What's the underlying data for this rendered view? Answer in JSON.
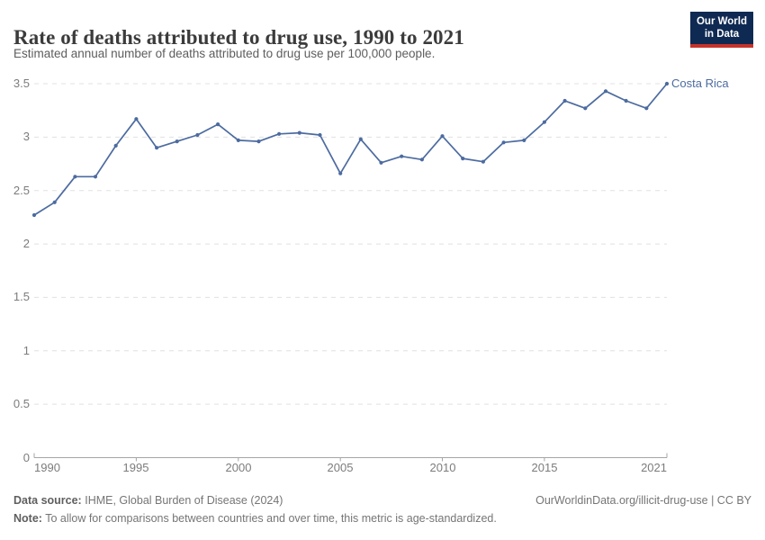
{
  "header": {
    "title": "Rate of deaths attributed to drug use, 1990 to 2021",
    "subtitle": "Estimated annual number of deaths attributed to drug use per 100,000 people."
  },
  "logo": {
    "line1": "Our World",
    "line2": "in Data"
  },
  "chart_data": {
    "type": "line",
    "title": "Rate of deaths attributed to drug use, 1990 to 2021",
    "xlabel": "",
    "ylabel": "",
    "x": [
      1990,
      1991,
      1992,
      1993,
      1994,
      1995,
      1996,
      1997,
      1998,
      1999,
      2000,
      2001,
      2002,
      2003,
      2004,
      2005,
      2006,
      2007,
      2008,
      2009,
      2010,
      2011,
      2012,
      2013,
      2014,
      2015,
      2016,
      2017,
      2018,
      2019,
      2020,
      2021
    ],
    "series": [
      {
        "name": "Costa Rica",
        "color": "#4c6ba0",
        "values": [
          2.27,
          2.39,
          2.63,
          2.63,
          2.92,
          3.17,
          2.9,
          2.96,
          3.02,
          3.12,
          2.97,
          2.96,
          3.03,
          3.04,
          3.02,
          2.66,
          2.98,
          2.76,
          2.82,
          2.79,
          3.01,
          2.8,
          2.77,
          2.95,
          2.97,
          3.14,
          3.34,
          3.27,
          3.43,
          3.34,
          3.27,
          3.5
        ]
      }
    ],
    "xlim": [
      1990,
      2021
    ],
    "ylim": [
      0,
      3.5
    ],
    "yticks": [
      0,
      0.5,
      1,
      1.5,
      2,
      2.5,
      3,
      3.5
    ],
    "ytick_labels": [
      "0",
      "0.5",
      "1",
      "1.5",
      "2",
      "2.5",
      "3",
      "3.5"
    ],
    "xticks": [
      1990,
      1995,
      2000,
      2005,
      2010,
      2015,
      2021
    ],
    "xtick_labels": [
      "1990",
      "1995",
      "2000",
      "2005",
      "2010",
      "2015",
      "2021"
    ],
    "grid": "horizontal-dashed",
    "legend_position": "end-of-line-label"
  },
  "footer": {
    "datasource_label": "Data source:",
    "datasource_text": "IHME, Global Burden of Disease (2024)",
    "credit": "OurWorldinData.org/illicit-drug-use | CC BY",
    "note_label": "Note:",
    "note_text": "To allow for comparisons between countries and over time, this metric is age-standardized."
  },
  "colors": {
    "line": "#4c6ba0",
    "grid": "#e0e0e0",
    "axis": "#a5a5a5",
    "tick_text": "#7c7c7c",
    "title_text": "#3b3b3b",
    "subtitle_text": "#5d5d5d",
    "footer_text": "#757575",
    "logo_bg": "#0f2a52",
    "logo_stripe": "#c5332b"
  }
}
